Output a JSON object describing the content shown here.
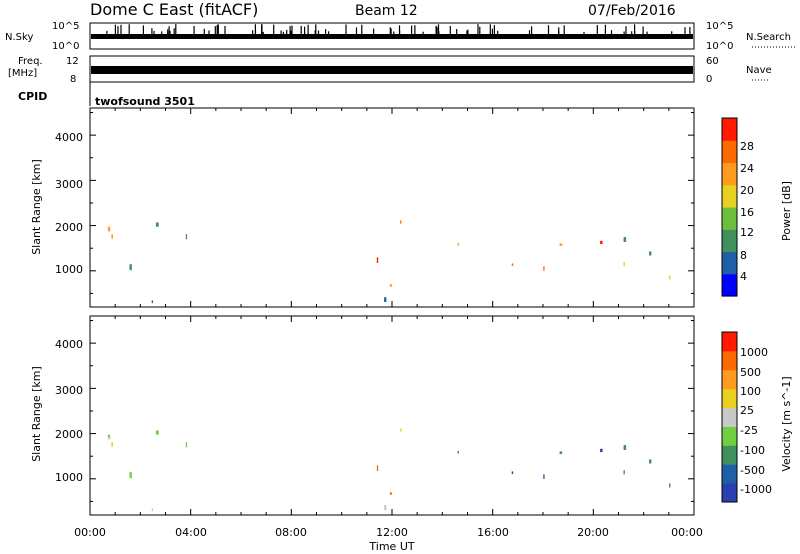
{
  "header": {
    "title": "Dome C East (fitACF)",
    "beam": "Beam 12",
    "date": "07/Feb/2016"
  },
  "top_panels": {
    "nsky": {
      "label": "N.Sky",
      "ticks": [
        "10^5",
        "10^0"
      ]
    },
    "nsearch": {
      "label": "N.Search",
      "ticks": [
        "10^5",
        "10^0"
      ]
    },
    "freq": {
      "label": "Freq.",
      "unit": "[MHz]",
      "ticks": [
        "12",
        "8"
      ]
    },
    "nave": {
      "label": "Nave",
      "ticks": [
        "60",
        "0"
      ]
    },
    "cpid": {
      "label": "CPID",
      "value": "twofsound 3501"
    }
  },
  "colors": {
    "power_scale": [
      "#0000ff",
      "#1f5fa8",
      "#3f8f5f",
      "#6fbf3f",
      "#e8d020",
      "#ff9b1f",
      "#ff6a00",
      "#ff1a00"
    ],
    "velocity_scale": [
      "#ff1a00",
      "#ff6a00",
      "#ff9b1f",
      "#e8d020",
      "#c8c8c8",
      "#6fcf3f",
      "#3f8f5f",
      "#1f5fa8",
      "#2a3fb0"
    ]
  },
  "chart_data": [
    {
      "type": "heatmap",
      "name": "power",
      "ylabel": "Slant Range [km]",
      "yticks": [
        "1000",
        "2000",
        "3000",
        "4000"
      ],
      "ylim": [
        200,
        4600
      ],
      "colorbar": {
        "label": "Power [dB]",
        "ticks": [
          "4",
          "8",
          "12",
          "16",
          "20",
          "24",
          "28"
        ],
        "range": [
          0,
          32
        ]
      }
    },
    {
      "type": "heatmap",
      "name": "velocity",
      "ylabel": "Slant Range [km]",
      "yticks": [
        "1000",
        "2000",
        "3000",
        "4000"
      ],
      "ylim": [
        200,
        4600
      ],
      "colorbar": {
        "label": "Velocity [m s^-1]",
        "ticks": [
          "1000",
          "500",
          "100",
          "25",
          "-25",
          "-100",
          "-500",
          "-1000"
        ]
      },
      "xlabel": "Time UT",
      "xticks": [
        "00:00",
        "04:00",
        "08:00",
        "12:00",
        "16:00",
        "20:00",
        "00:00"
      ],
      "xlim_hours": [
        0,
        24
      ]
    }
  ]
}
